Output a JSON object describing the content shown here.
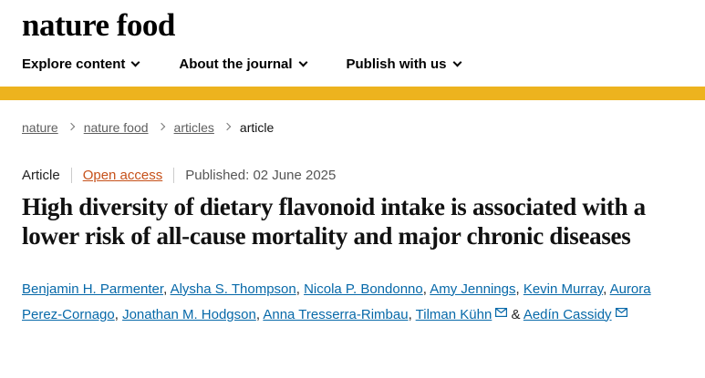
{
  "header": {
    "logo": "nature food",
    "nav": {
      "items": [
        {
          "label": "Explore content",
          "icon": "chevron-down-icon"
        },
        {
          "label": "About the journal",
          "icon": "chevron-down-icon"
        },
        {
          "label": "Publish with us",
          "icon": "chevron-down-icon"
        }
      ]
    }
  },
  "breadcrumb": {
    "items": [
      {
        "label": "nature",
        "link": true
      },
      {
        "label": "nature food",
        "link": true
      },
      {
        "label": "articles",
        "link": true
      },
      {
        "label": "article",
        "link": false
      }
    ]
  },
  "article": {
    "type_label": "Article",
    "access_label": "Open access",
    "published_label": "Published: 02 June 2025",
    "title": "High diversity of dietary flavonoid intake is associated with a lower risk of all-cause mortality and major chronic diseases",
    "authors": [
      {
        "name": "Benjamin H. Parmenter"
      },
      {
        "name": "Alysha S. Thompson"
      },
      {
        "name": "Nicola P. Bondonno"
      },
      {
        "name": "Amy Jennings"
      },
      {
        "name": "Kevin Murray"
      },
      {
        "name": "Aurora Perez-Cornago"
      },
      {
        "name": "Jonathan M. Hodgson"
      },
      {
        "name": "Anna Tresserra-Rimbau"
      },
      {
        "name": "Tilman Kühn",
        "email": true
      },
      {
        "name": "Aedín Cassidy",
        "email": true
      }
    ],
    "author_separator": ", ",
    "author_last_separator": " & "
  },
  "icons": {
    "email": "email-icon",
    "nav_chevron": "chevron-down-icon",
    "breadcrumb_chevron": "chevron-right-icon"
  },
  "colors": {
    "accent_yellow": "#edb31e",
    "link_blue": "#0769a9",
    "open_access_orange": "#c6511a"
  }
}
